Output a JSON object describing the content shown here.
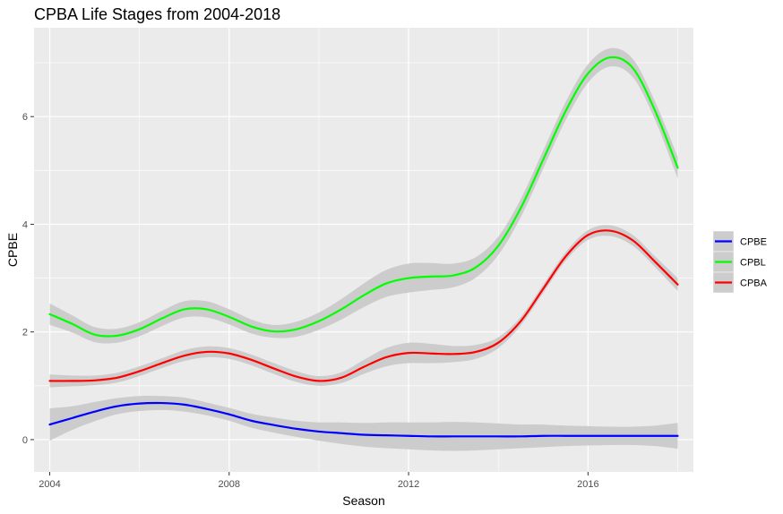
{
  "chart_data": {
    "type": "line",
    "title": "CPBA Life Stages from 2004-2018",
    "xlabel": "Season",
    "ylabel": "CPBE",
    "xlim": [
      2003.65,
      2018.35
    ],
    "ylim": [
      -0.6,
      7.65
    ],
    "x_ticks": [
      2004,
      2008,
      2012,
      2016
    ],
    "x_tick_labels": [
      "2004",
      "2008",
      "2012",
      "2016"
    ],
    "y_ticks": [
      0,
      2,
      4,
      6
    ],
    "y_tick_labels": [
      "0",
      "2",
      "4",
      "6"
    ],
    "grid": true,
    "legend_position": "right",
    "band_color": "#cccccc",
    "panel_color": "#ebebeb",
    "series": [
      {
        "name": "CPBE",
        "color": "#0000ff",
        "points": [
          [
            2004,
            0.28
          ],
          [
            2004.5,
            0.4
          ],
          [
            2005,
            0.52
          ],
          [
            2005.5,
            0.62
          ],
          [
            2006,
            0.67
          ],
          [
            2006.5,
            0.68
          ],
          [
            2007,
            0.65
          ],
          [
            2007.5,
            0.57
          ],
          [
            2008,
            0.47
          ],
          [
            2008.5,
            0.35
          ],
          [
            2009,
            0.27
          ],
          [
            2009.5,
            0.2
          ],
          [
            2010,
            0.15
          ],
          [
            2010.5,
            0.12
          ],
          [
            2011,
            0.09
          ],
          [
            2011.5,
            0.08
          ],
          [
            2012,
            0.07
          ],
          [
            2012.5,
            0.06
          ],
          [
            2013,
            0.06
          ],
          [
            2013.5,
            0.06
          ],
          [
            2014,
            0.06
          ],
          [
            2014.5,
            0.06
          ],
          [
            2015,
            0.07
          ],
          [
            2015.5,
            0.07
          ],
          [
            2016,
            0.07
          ],
          [
            2016.5,
            0.07
          ],
          [
            2017,
            0.07
          ],
          [
            2017.5,
            0.07
          ],
          [
            2018,
            0.07
          ]
        ],
        "lower": [
          [
            2004,
            -0.02
          ],
          [
            2004.5,
            0.18
          ],
          [
            2005,
            0.34
          ],
          [
            2005.5,
            0.47
          ],
          [
            2006,
            0.53
          ],
          [
            2006.5,
            0.55
          ],
          [
            2007,
            0.52
          ],
          [
            2007.5,
            0.45
          ],
          [
            2008,
            0.35
          ],
          [
            2008.5,
            0.22
          ],
          [
            2009,
            0.13
          ],
          [
            2009.5,
            0.05
          ],
          [
            2010,
            -0.02
          ],
          [
            2010.5,
            -0.08
          ],
          [
            2011,
            -0.13
          ],
          [
            2011.5,
            -0.16
          ],
          [
            2012,
            -0.18
          ],
          [
            2012.5,
            -0.2
          ],
          [
            2013,
            -0.21
          ],
          [
            2013.5,
            -0.2
          ],
          [
            2014,
            -0.18
          ],
          [
            2014.5,
            -0.16
          ],
          [
            2015,
            -0.14
          ],
          [
            2015.5,
            -0.12
          ],
          [
            2016,
            -0.11
          ],
          [
            2016.5,
            -0.1
          ],
          [
            2017,
            -0.1
          ],
          [
            2017.5,
            -0.12
          ],
          [
            2018,
            -0.17
          ]
        ],
        "upper": [
          [
            2004,
            0.58
          ],
          [
            2004.5,
            0.62
          ],
          [
            2005,
            0.7
          ],
          [
            2005.5,
            0.77
          ],
          [
            2006,
            0.81
          ],
          [
            2006.5,
            0.81
          ],
          [
            2007,
            0.78
          ],
          [
            2007.5,
            0.69
          ],
          [
            2008,
            0.59
          ],
          [
            2008.5,
            0.48
          ],
          [
            2009,
            0.41
          ],
          [
            2009.5,
            0.35
          ],
          [
            2010,
            0.32
          ],
          [
            2010.5,
            0.32
          ],
          [
            2011,
            0.31
          ],
          [
            2011.5,
            0.32
          ],
          [
            2012,
            0.32
          ],
          [
            2012.5,
            0.32
          ],
          [
            2013,
            0.33
          ],
          [
            2013.5,
            0.32
          ],
          [
            2014,
            0.3
          ],
          [
            2014.5,
            0.28
          ],
          [
            2015,
            0.28
          ],
          [
            2015.5,
            0.26
          ],
          [
            2016,
            0.25
          ],
          [
            2016.5,
            0.24
          ],
          [
            2017,
            0.24
          ],
          [
            2017.5,
            0.26
          ],
          [
            2018,
            0.31
          ]
        ]
      },
      {
        "name": "CPBL",
        "color": "#00ff00",
        "points": [
          [
            2004,
            2.33
          ],
          [
            2004.5,
            2.15
          ],
          [
            2005,
            1.95
          ],
          [
            2005.5,
            1.93
          ],
          [
            2006,
            2.05
          ],
          [
            2006.5,
            2.25
          ],
          [
            2007,
            2.42
          ],
          [
            2007.5,
            2.42
          ],
          [
            2008,
            2.28
          ],
          [
            2008.5,
            2.1
          ],
          [
            2009,
            2.01
          ],
          [
            2009.5,
            2.05
          ],
          [
            2010,
            2.2
          ],
          [
            2010.5,
            2.42
          ],
          [
            2011,
            2.68
          ],
          [
            2011.5,
            2.9
          ],
          [
            2012,
            3.0
          ],
          [
            2012.5,
            3.03
          ],
          [
            2013,
            3.05
          ],
          [
            2013.5,
            3.2
          ],
          [
            2014,
            3.6
          ],
          [
            2014.5,
            4.3
          ],
          [
            2015,
            5.2
          ],
          [
            2015.5,
            6.1
          ],
          [
            2016,
            6.8
          ],
          [
            2016.5,
            7.1
          ],
          [
            2017,
            6.9
          ],
          [
            2017.5,
            6.1
          ],
          [
            2018,
            5.05
          ]
        ],
        "lower": [
          [
            2004,
            2.13
          ],
          [
            2004.5,
            1.99
          ],
          [
            2005,
            1.81
          ],
          [
            2005.5,
            1.8
          ],
          [
            2006,
            1.92
          ],
          [
            2006.5,
            2.11
          ],
          [
            2007,
            2.27
          ],
          [
            2007.5,
            2.27
          ],
          [
            2008,
            2.14
          ],
          [
            2008.5,
            1.97
          ],
          [
            2009,
            1.89
          ],
          [
            2009.5,
            1.91
          ],
          [
            2010,
            2.04
          ],
          [
            2010.5,
            2.23
          ],
          [
            2011,
            2.46
          ],
          [
            2011.5,
            2.65
          ],
          [
            2012,
            2.73
          ],
          [
            2012.5,
            2.78
          ],
          [
            2013,
            2.83
          ],
          [
            2013.5,
            3.01
          ],
          [
            2014,
            3.43
          ],
          [
            2014.5,
            4.13
          ],
          [
            2015,
            5.03
          ],
          [
            2015.5,
            5.93
          ],
          [
            2016,
            6.63
          ],
          [
            2016.5,
            6.93
          ],
          [
            2017,
            6.73
          ],
          [
            2017.5,
            5.93
          ],
          [
            2018,
            4.85
          ]
        ],
        "upper": [
          [
            2004,
            2.53
          ],
          [
            2004.5,
            2.31
          ],
          [
            2005,
            2.09
          ],
          [
            2005.5,
            2.06
          ],
          [
            2006,
            2.18
          ],
          [
            2006.5,
            2.39
          ],
          [
            2007,
            2.57
          ],
          [
            2007.5,
            2.57
          ],
          [
            2008,
            2.42
          ],
          [
            2008.5,
            2.23
          ],
          [
            2009,
            2.13
          ],
          [
            2009.5,
            2.19
          ],
          [
            2010,
            2.36
          ],
          [
            2010.5,
            2.61
          ],
          [
            2011,
            2.9
          ],
          [
            2011.5,
            3.15
          ],
          [
            2012,
            3.27
          ],
          [
            2012.5,
            3.28
          ],
          [
            2013,
            3.27
          ],
          [
            2013.5,
            3.39
          ],
          [
            2014,
            3.77
          ],
          [
            2014.5,
            4.47
          ],
          [
            2015,
            5.37
          ],
          [
            2015.5,
            6.27
          ],
          [
            2016,
            6.97
          ],
          [
            2016.5,
            7.27
          ],
          [
            2017,
            7.07
          ],
          [
            2017.5,
            6.27
          ],
          [
            2018,
            5.25
          ]
        ]
      },
      {
        "name": "CPBA",
        "color": "#ff0000",
        "points": [
          [
            2004,
            1.09
          ],
          [
            2004.5,
            1.09
          ],
          [
            2005,
            1.1
          ],
          [
            2005.5,
            1.15
          ],
          [
            2006,
            1.27
          ],
          [
            2006.5,
            1.42
          ],
          [
            2007,
            1.56
          ],
          [
            2007.5,
            1.63
          ],
          [
            2008,
            1.6
          ],
          [
            2008.5,
            1.48
          ],
          [
            2009,
            1.32
          ],
          [
            2009.5,
            1.17
          ],
          [
            2010,
            1.09
          ],
          [
            2010.5,
            1.15
          ],
          [
            2011,
            1.35
          ],
          [
            2011.5,
            1.53
          ],
          [
            2012,
            1.61
          ],
          [
            2012.5,
            1.6
          ],
          [
            2013,
            1.59
          ],
          [
            2013.5,
            1.63
          ],
          [
            2014,
            1.8
          ],
          [
            2014.5,
            2.2
          ],
          [
            2015,
            2.8
          ],
          [
            2015.5,
            3.4
          ],
          [
            2016,
            3.8
          ],
          [
            2016.5,
            3.88
          ],
          [
            2017,
            3.7
          ],
          [
            2017.5,
            3.3
          ],
          [
            2018,
            2.88
          ]
        ],
        "lower": [
          [
            2004,
            0.97
          ],
          [
            2004.5,
            0.99
          ],
          [
            2005,
            1.01
          ],
          [
            2005.5,
            1.06
          ],
          [
            2006,
            1.18
          ],
          [
            2006.5,
            1.33
          ],
          [
            2007,
            1.46
          ],
          [
            2007.5,
            1.53
          ],
          [
            2008,
            1.5
          ],
          [
            2008.5,
            1.38
          ],
          [
            2009,
            1.22
          ],
          [
            2009.5,
            1.07
          ],
          [
            2010,
            1.0
          ],
          [
            2010.5,
            1.05
          ],
          [
            2011,
            1.22
          ],
          [
            2011.5,
            1.36
          ],
          [
            2012,
            1.42
          ],
          [
            2012.5,
            1.42
          ],
          [
            2013,
            1.44
          ],
          [
            2013.5,
            1.5
          ],
          [
            2014,
            1.7
          ],
          [
            2014.5,
            2.12
          ],
          [
            2015,
            2.72
          ],
          [
            2015.5,
            3.32
          ],
          [
            2016,
            3.71
          ],
          [
            2016.5,
            3.78
          ],
          [
            2017,
            3.6
          ],
          [
            2017.5,
            3.2
          ],
          [
            2018,
            2.76
          ]
        ],
        "upper": [
          [
            2004,
            1.21
          ],
          [
            2004.5,
            1.19
          ],
          [
            2005,
            1.19
          ],
          [
            2005.5,
            1.24
          ],
          [
            2006,
            1.36
          ],
          [
            2006.5,
            1.51
          ],
          [
            2007,
            1.66
          ],
          [
            2007.5,
            1.73
          ],
          [
            2008,
            1.7
          ],
          [
            2008.5,
            1.58
          ],
          [
            2009,
            1.42
          ],
          [
            2009.5,
            1.27
          ],
          [
            2010,
            1.18
          ],
          [
            2010.5,
            1.25
          ],
          [
            2011,
            1.48
          ],
          [
            2011.5,
            1.7
          ],
          [
            2012,
            1.8
          ],
          [
            2012.5,
            1.78
          ],
          [
            2013,
            1.74
          ],
          [
            2013.5,
            1.76
          ],
          [
            2014,
            1.9
          ],
          [
            2014.5,
            2.28
          ],
          [
            2015,
            2.88
          ],
          [
            2015.5,
            3.48
          ],
          [
            2016,
            3.89
          ],
          [
            2016.5,
            3.98
          ],
          [
            2017,
            3.8
          ],
          [
            2017.5,
            3.4
          ],
          [
            2018,
            3.0
          ]
        ]
      }
    ]
  }
}
